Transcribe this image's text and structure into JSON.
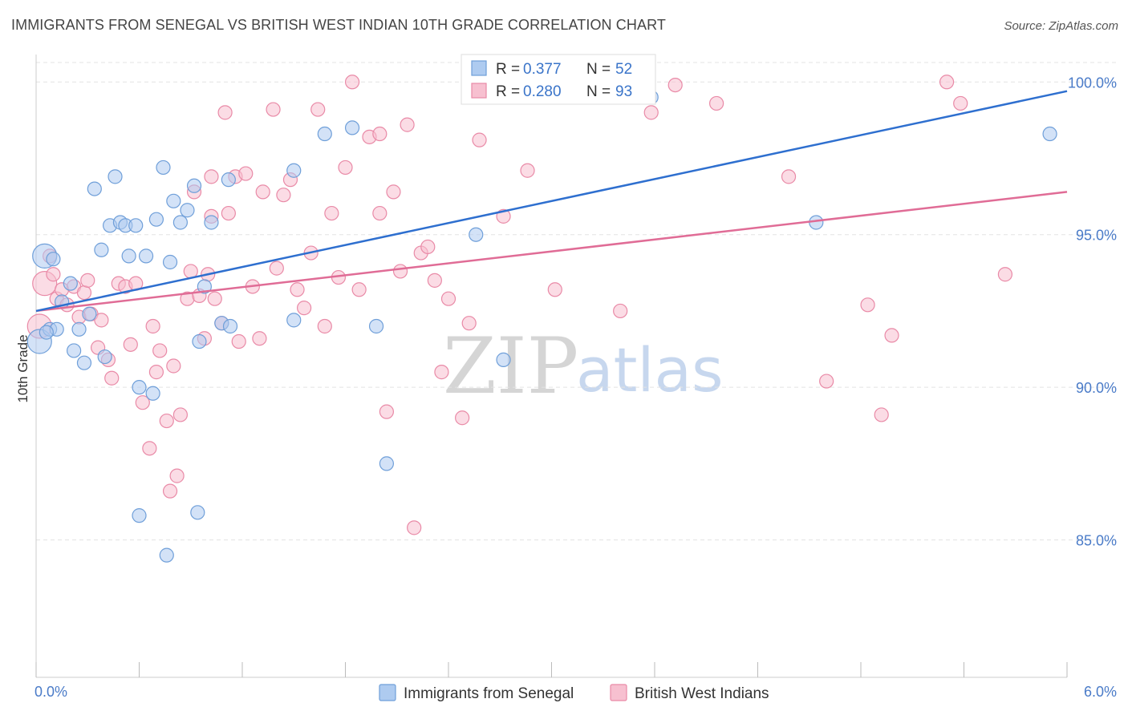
{
  "title": "IMMIGRANTS FROM SENEGAL VS BRITISH WEST INDIAN 10TH GRADE CORRELATION CHART",
  "source": "Source: ZipAtlas.com",
  "watermark": {
    "zip": "ZIP",
    "atlas": "atlas"
  },
  "colors": {
    "blue_fill": "#aecbf0",
    "blue_stroke": "#6f9fd9",
    "blue_line": "#2e6fcf",
    "pink_fill": "#f7c0d0",
    "pink_stroke": "#e98aa7",
    "pink_line": "#e06c96",
    "tick_text": "#4a7bc8",
    "grid": "#e3e3e3"
  },
  "legend": {
    "rows": [
      {
        "r_label": "R = ",
        "r_value": "0.377",
        "n_label": "N = ",
        "n_value": "52"
      },
      {
        "r_label": "R = ",
        "r_value": "0.280",
        "n_label": "N = ",
        "n_value": "93"
      }
    ]
  },
  "bottom_legend": [
    "Immigrants from Senegal",
    "British West Indians"
  ],
  "chart_data": {
    "type": "scatter",
    "title": "IMMIGRANTS FROM SENEGAL VS BRITISH WEST INDIAN 10TH GRADE CORRELATION CHART",
    "xlabel": "",
    "ylabel": "10th Grade",
    "xlim": [
      0,
      6
    ],
    "ylim": [
      80.5,
      100.9
    ],
    "x_tick_labels": [
      "0.0%",
      "6.0%"
    ],
    "y_ticks": [
      85,
      90,
      95,
      100
    ],
    "y_tick_labels": [
      "85.0%",
      "90.0%",
      "95.0%",
      "100.0%"
    ],
    "grid": true,
    "legend_position": "top-center",
    "series": [
      {
        "name": "Immigrants from Senegal",
        "R": 0.377,
        "N": 52,
        "trend": {
          "x": [
            0,
            6
          ],
          "y": [
            92.5,
            99.7
          ]
        },
        "points": [
          [
            0.02,
            91.5
          ],
          [
            0.05,
            94.3
          ],
          [
            0.08,
            91.9
          ],
          [
            0.1,
            94.2
          ],
          [
            0.12,
            91.9
          ],
          [
            0.15,
            92.8
          ],
          [
            0.2,
            93.4
          ],
          [
            0.22,
            91.2
          ],
          [
            0.25,
            91.9
          ],
          [
            0.28,
            90.8
          ],
          [
            0.31,
            92.4
          ],
          [
            0.34,
            96.5
          ],
          [
            0.38,
            94.5
          ],
          [
            0.4,
            91.0
          ],
          [
            0.43,
            95.3
          ],
          [
            0.46,
            96.9
          ],
          [
            0.49,
            95.4
          ],
          [
            0.52,
            95.3
          ],
          [
            0.54,
            94.3
          ],
          [
            0.58,
            95.3
          ],
          [
            0.6,
            90.0
          ],
          [
            0.64,
            94.3
          ],
          [
            0.68,
            89.8
          ],
          [
            0.7,
            95.5
          ],
          [
            0.74,
            97.2
          ],
          [
            0.78,
            94.1
          ],
          [
            0.8,
            96.1
          ],
          [
            0.84,
            95.4
          ],
          [
            0.88,
            95.8
          ],
          [
            0.92,
            96.6
          ],
          [
            0.95,
            91.5
          ],
          [
            0.98,
            93.3
          ],
          [
            1.02,
            95.4
          ],
          [
            1.08,
            92.1
          ],
          [
            1.12,
            96.8
          ],
          [
            1.5,
            97.1
          ],
          [
            1.68,
            98.3
          ],
          [
            1.84,
            98.5
          ],
          [
            1.98,
            92.0
          ],
          [
            2.04,
            87.5
          ],
          [
            2.56,
            95.0
          ],
          [
            2.72,
            90.9
          ],
          [
            2.86,
            100.0
          ],
          [
            3.58,
            99.5
          ],
          [
            4.54,
            95.4
          ],
          [
            5.9,
            98.3
          ],
          [
            0.6,
            85.8
          ],
          [
            0.76,
            84.5
          ],
          [
            0.94,
            85.9
          ],
          [
            1.13,
            92.0
          ],
          [
            1.5,
            92.2
          ],
          [
            0.06,
            91.8
          ]
        ]
      },
      {
        "name": "British West Indians",
        "R": 0.28,
        "N": 93,
        "trend": {
          "x": [
            0,
            6
          ],
          "y": [
            92.5,
            96.4
          ]
        },
        "points": [
          [
            0.02,
            92.0
          ],
          [
            0.05,
            93.4
          ],
          [
            0.08,
            94.3
          ],
          [
            0.1,
            93.7
          ],
          [
            0.12,
            92.9
          ],
          [
            0.15,
            93.2
          ],
          [
            0.18,
            92.7
          ],
          [
            0.22,
            93.3
          ],
          [
            0.25,
            92.3
          ],
          [
            0.28,
            93.1
          ],
          [
            0.32,
            92.4
          ],
          [
            0.36,
            91.3
          ],
          [
            0.38,
            92.2
          ],
          [
            0.42,
            90.9
          ],
          [
            0.44,
            90.3
          ],
          [
            0.48,
            93.4
          ],
          [
            0.52,
            93.3
          ],
          [
            0.55,
            91.4
          ],
          [
            0.58,
            93.4
          ],
          [
            0.62,
            89.5
          ],
          [
            0.66,
            88.0
          ],
          [
            0.68,
            92.0
          ],
          [
            0.7,
            90.5
          ],
          [
            0.72,
            91.2
          ],
          [
            0.76,
            88.9
          ],
          [
            0.78,
            86.6
          ],
          [
            0.8,
            90.7
          ],
          [
            0.82,
            87.1
          ],
          [
            0.84,
            89.1
          ],
          [
            0.88,
            92.9
          ],
          [
            0.9,
            93.8
          ],
          [
            0.92,
            96.4
          ],
          [
            0.95,
            93.0
          ],
          [
            0.98,
            91.6
          ],
          [
            1.0,
            93.7
          ],
          [
            1.02,
            95.6
          ],
          [
            1.04,
            92.9
          ],
          [
            1.08,
            92.1
          ],
          [
            1.1,
            99.0
          ],
          [
            1.12,
            95.7
          ],
          [
            1.16,
            96.9
          ],
          [
            1.18,
            91.5
          ],
          [
            1.22,
            97.0
          ],
          [
            1.26,
            93.3
          ],
          [
            1.3,
            91.6
          ],
          [
            1.32,
            96.4
          ],
          [
            1.38,
            99.1
          ],
          [
            1.4,
            93.9
          ],
          [
            1.44,
            96.3
          ],
          [
            1.48,
            96.8
          ],
          [
            1.52,
            93.2
          ],
          [
            1.56,
            92.6
          ],
          [
            1.6,
            94.4
          ],
          [
            1.64,
            99.1
          ],
          [
            1.68,
            92.0
          ],
          [
            1.72,
            95.7
          ],
          [
            1.76,
            93.6
          ],
          [
            1.8,
            97.2
          ],
          [
            1.84,
            100.0
          ],
          [
            1.88,
            93.2
          ],
          [
            1.94,
            98.2
          ],
          [
            2.0,
            95.7
          ],
          [
            2.04,
            89.2
          ],
          [
            2.08,
            96.4
          ],
          [
            2.12,
            93.8
          ],
          [
            2.16,
            98.6
          ],
          [
            2.2,
            85.4
          ],
          [
            2.24,
            94.4
          ],
          [
            2.28,
            94.6
          ],
          [
            2.32,
            93.5
          ],
          [
            2.36,
            90.5
          ],
          [
            2.4,
            92.9
          ],
          [
            2.48,
            89.0
          ],
          [
            2.52,
            92.1
          ],
          [
            2.58,
            98.1
          ],
          [
            2.72,
            95.6
          ],
          [
            2.86,
            97.1
          ],
          [
            3.02,
            93.2
          ],
          [
            3.4,
            92.5
          ],
          [
            3.58,
            99.0
          ],
          [
            3.72,
            99.9
          ],
          [
            3.96,
            99.3
          ],
          [
            4.38,
            96.9
          ],
          [
            4.6,
            90.2
          ],
          [
            4.84,
            92.7
          ],
          [
            4.92,
            89.1
          ],
          [
            4.98,
            91.7
          ],
          [
            5.3,
            100.0
          ],
          [
            5.38,
            99.3
          ],
          [
            5.64,
            93.7
          ],
          [
            2.0,
            98.3
          ],
          [
            1.02,
            96.9
          ],
          [
            0.3,
            93.5
          ]
        ]
      }
    ]
  }
}
